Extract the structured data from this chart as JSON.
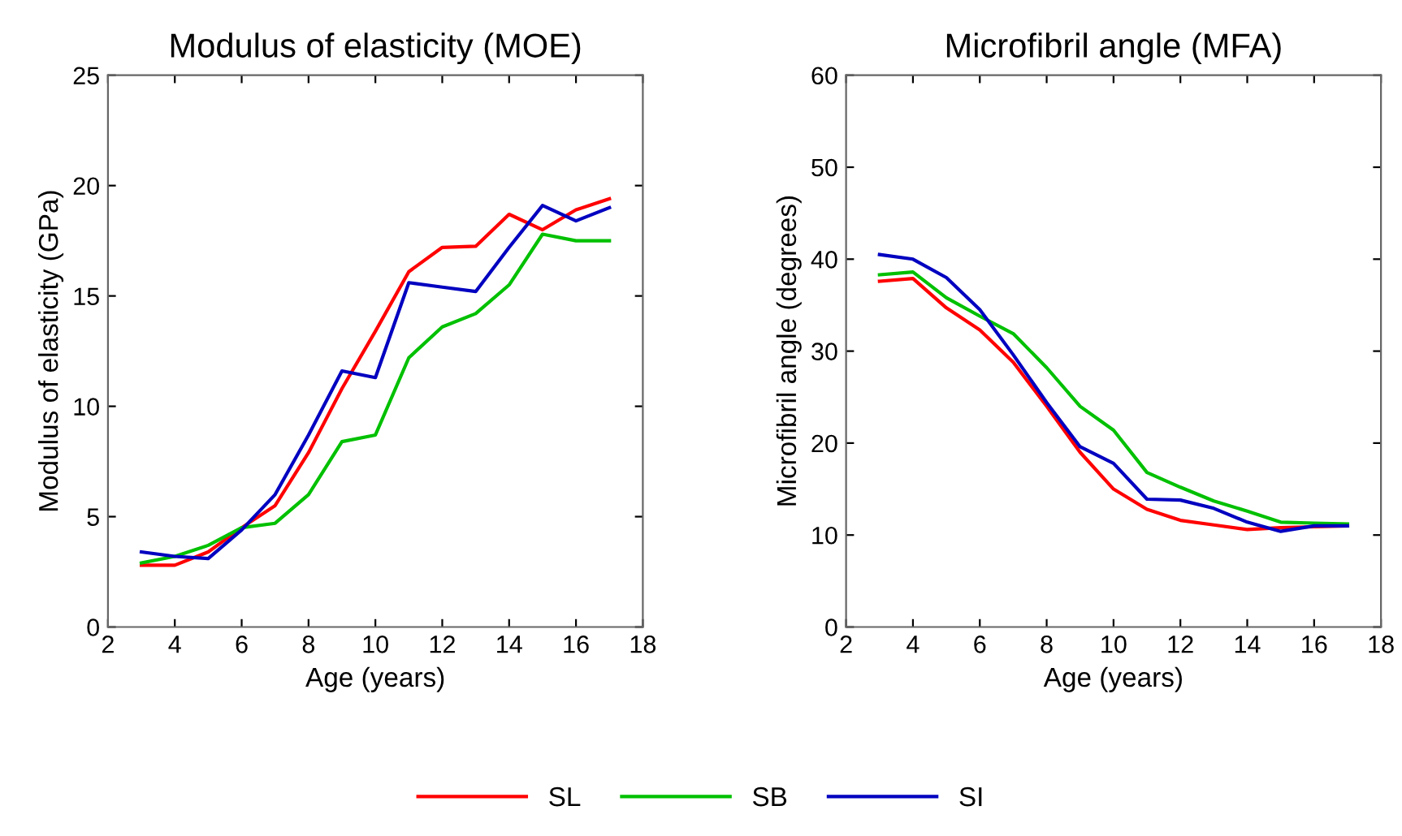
{
  "chart_data": [
    {
      "type": "line",
      "title": "Modulus of elasticity (MOE)",
      "xlabel": "Age (years)",
      "ylabel": "Modulus of elasticity (GPa)",
      "x": [
        3,
        4,
        5,
        6,
        7,
        8,
        9,
        10,
        11,
        12,
        13,
        14,
        15,
        16,
        17
      ],
      "xlim": [
        2,
        18
      ],
      "xticks": [
        2,
        4,
        6,
        8,
        10,
        12,
        14,
        16,
        18
      ],
      "ylim": [
        0,
        25
      ],
      "yticks": [
        0,
        5,
        10,
        15,
        20,
        25
      ],
      "grid": false,
      "legend": "bottom",
      "series": [
        {
          "name": "SL",
          "color": "#ff0000",
          "values": [
            2.8,
            2.8,
            3.4,
            4.5,
            5.5,
            7.9,
            10.8,
            13.4,
            16.1,
            17.2,
            17.25,
            18.7,
            18.0,
            18.9,
            19.4
          ]
        },
        {
          "name": "SB",
          "color": "#00c000",
          "values": [
            2.9,
            3.2,
            3.7,
            4.5,
            4.7,
            6.0,
            8.4,
            8.7,
            12.2,
            13.6,
            14.2,
            15.5,
            17.8,
            17.5,
            17.5
          ]
        },
        {
          "name": "SI",
          "color": "#0000c0",
          "values": [
            3.4,
            3.2,
            3.1,
            4.4,
            6.0,
            8.7,
            11.6,
            11.3,
            15.6,
            15.4,
            15.2,
            17.2,
            19.1,
            18.4,
            19.0
          ]
        }
      ]
    },
    {
      "type": "line",
      "title": "Microfibril angle (MFA)",
      "xlabel": "Age (years)",
      "ylabel": "Microfibril angle (degrees)",
      "x": [
        3,
        4,
        5,
        6,
        7,
        8,
        9,
        10,
        11,
        12,
        13,
        14,
        15,
        16,
        17
      ],
      "xlim": [
        2,
        18
      ],
      "xticks": [
        2,
        4,
        6,
        8,
        10,
        12,
        14,
        16,
        18
      ],
      "ylim": [
        0,
        60
      ],
      "yticks": [
        0,
        10,
        20,
        30,
        40,
        50,
        60
      ],
      "grid": false,
      "series": [
        {
          "color": "#ff0000",
          "values": [
            37.6,
            37.9,
            34.7,
            32.3,
            28.8,
            24.0,
            19.0,
            15.0,
            12.8,
            11.6,
            11.1,
            10.6,
            10.8,
            10.9,
            11.0
          ]
        },
        {
          "color": "#00c000",
          "values": [
            38.3,
            38.6,
            35.8,
            33.8,
            31.9,
            28.2,
            24.0,
            21.4,
            16.8,
            15.2,
            13.7,
            12.6,
            11.4,
            11.3,
            11.2
          ]
        },
        {
          "color": "#0000c0",
          "values": [
            40.5,
            40.0,
            38.0,
            34.5,
            29.6,
            24.4,
            19.6,
            17.8,
            13.9,
            13.8,
            12.9,
            11.4,
            10.4,
            11.0,
            11.0
          ]
        }
      ]
    }
  ]
}
